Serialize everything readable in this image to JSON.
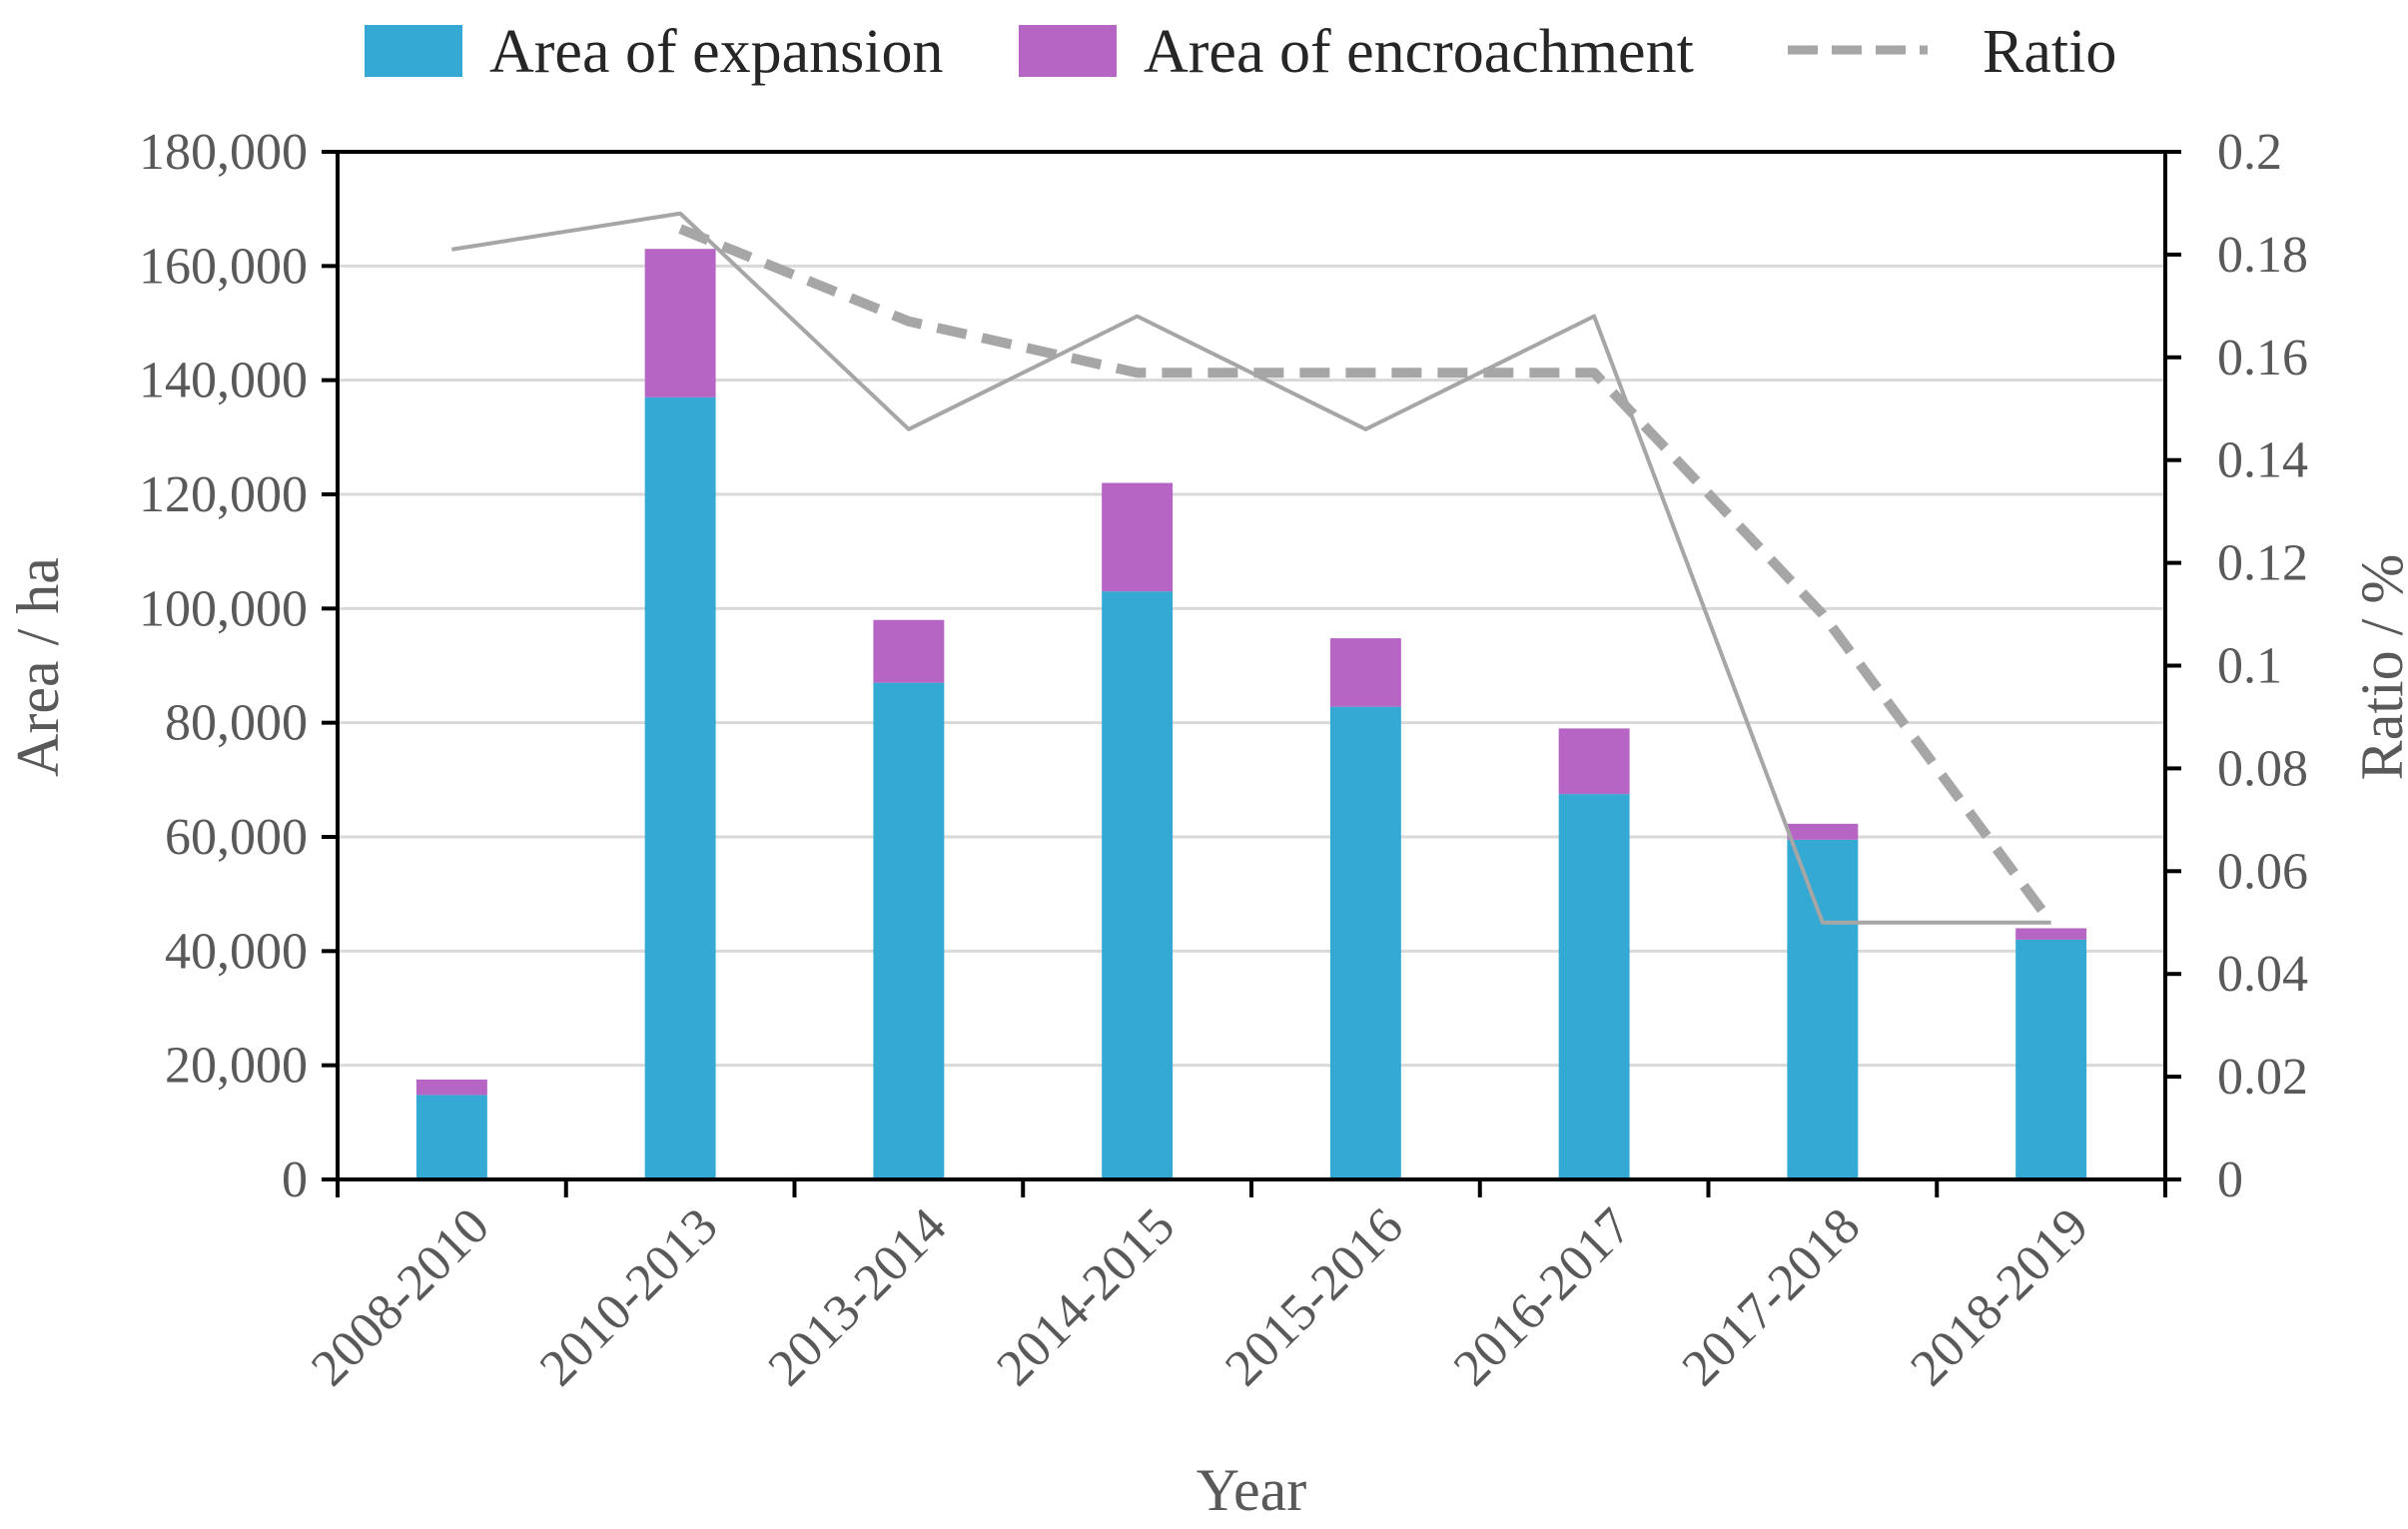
{
  "chart_data": {
    "type": "bar",
    "stacked": true,
    "categories": [
      "2008-2010",
      "2010-2013",
      "2013-2014",
      "2014-2015",
      "2015-2016",
      "2016-2017",
      "2017-2018",
      "2018-2019"
    ],
    "series": [
      {
        "name": "Area of expansion",
        "kind": "bar",
        "axis": "left",
        "color": "#33a9d3",
        "values": [
          14800,
          137000,
          87000,
          103000,
          82800,
          67500,
          59500,
          42000
        ]
      },
      {
        "name": "Area of encroachment",
        "kind": "bar",
        "axis": "left",
        "color": "#b665c4",
        "values": [
          2700,
          26000,
          11000,
          19000,
          12000,
          11500,
          2800,
          2000
        ]
      },
      {
        "name": "Ratio",
        "kind": "line",
        "axis": "right",
        "color": "#a6a6a6",
        "dashed": true,
        "values": [
          null,
          0.185,
          0.167,
          0.157,
          0.157,
          0.157,
          0.11,
          0.05
        ]
      },
      {
        "name": "",
        "kind": "line",
        "axis": "right",
        "color": "#a6a6a6",
        "dashed": false,
        "values": [
          0.181,
          0.188,
          0.146,
          0.168,
          0.146,
          0.168,
          0.05,
          0.05
        ]
      }
    ],
    "xlabel": "Year",
    "ylabel": "Area / ha",
    "y2label": "Ratio / %",
    "ylim": [
      0,
      180000
    ],
    "y2lim": [
      0,
      0.2
    ],
    "yticks": [
      "0",
      "20,000",
      "40,000",
      "60,000",
      "80,000",
      "100,000",
      "120,000",
      "140,000",
      "160,000",
      "180,000"
    ],
    "y2ticks": [
      "0",
      "0.02",
      "0.04",
      "0.06",
      "0.08",
      "0.1",
      "0.12",
      "0.14",
      "0.16",
      "0.18",
      "0.2"
    ],
    "legend": {
      "position": "top",
      "entries": [
        "Area of expansion",
        "Area of encroachment",
        "Ratio"
      ]
    },
    "grid": true
  }
}
